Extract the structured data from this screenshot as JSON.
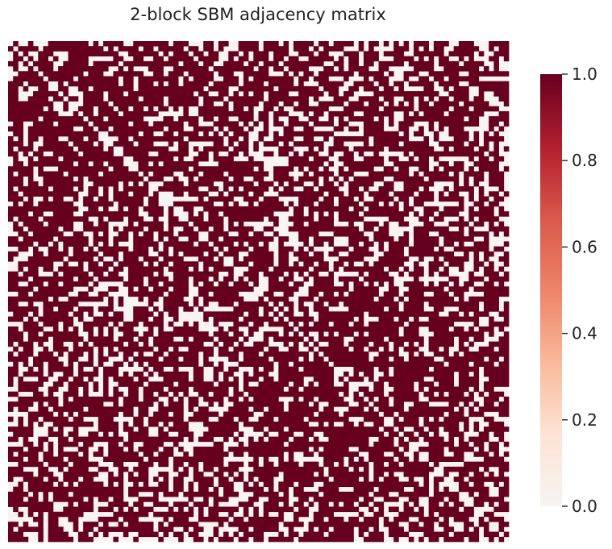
{
  "chart_data": {
    "type": "heatmap",
    "title": "2-block SBM adjacency matrix",
    "n_nodes": 100,
    "blocks": 2,
    "matrix_values": [
      0,
      1
    ],
    "colorbar": {
      "vmin": 0.0,
      "vmax": 1.0,
      "ticks": [
        0.0,
        0.2,
        0.4,
        0.6,
        0.8,
        1.0
      ],
      "tick_labels": [
        "0.0",
        "0.2",
        "0.4",
        "0.6",
        "0.8",
        "1.0"
      ]
    },
    "colormap": {
      "name": "Reds",
      "stops": [
        "#f7f4f2",
        "#fde3d4",
        "#f9b99a",
        "#ee8466",
        "#d9584b",
        "#b21f2f",
        "#67001f"
      ]
    },
    "xticks_shown": false,
    "yticks_shown": false,
    "grid": false
  }
}
